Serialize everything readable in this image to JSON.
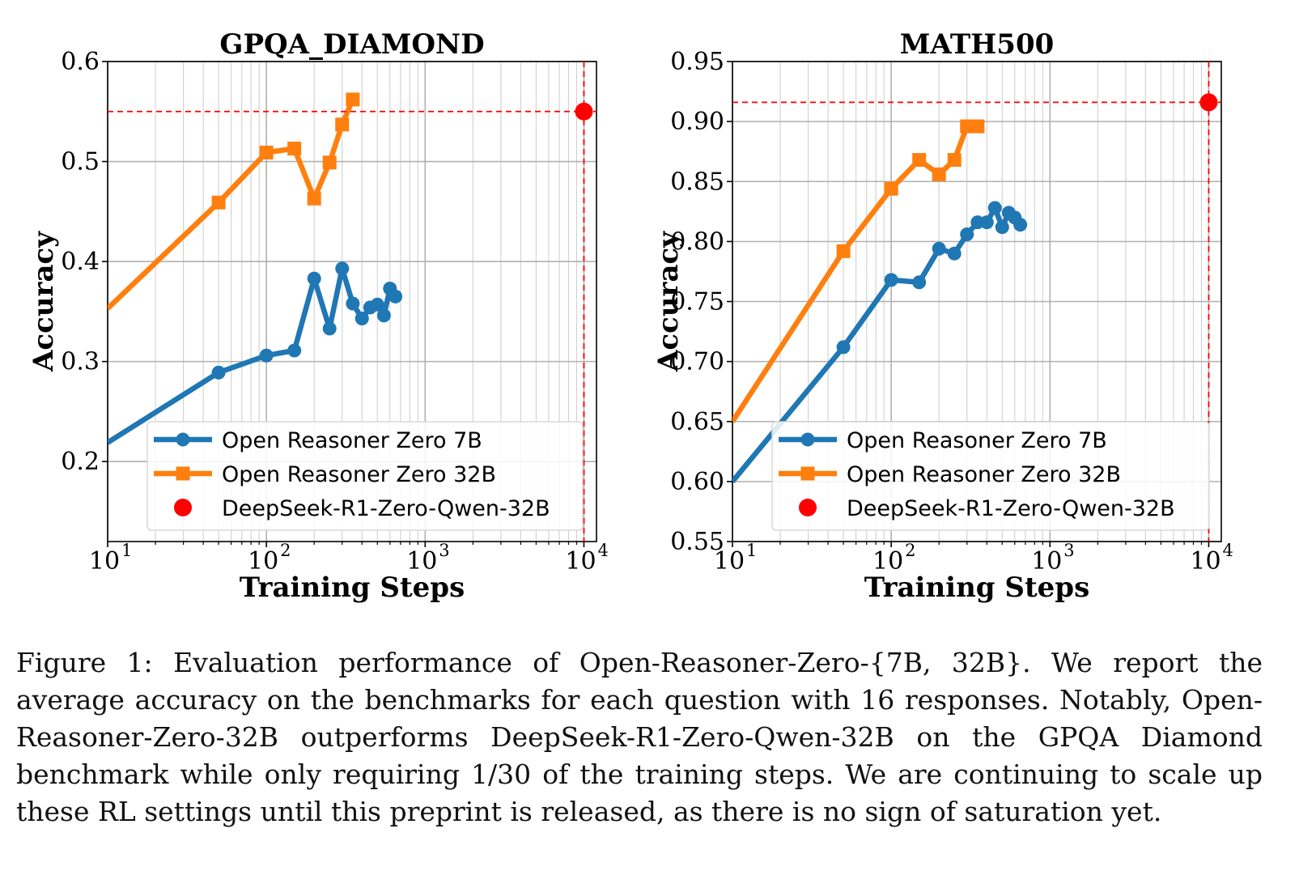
{
  "chart_data": [
    {
      "type": "line",
      "title": "GPQA_DIAMOND",
      "xlabel": "Training Steps",
      "ylabel": "Accuracy",
      "xscale": "log",
      "xlim": [
        10,
        12000
      ],
      "ylim": [
        0.12,
        0.6
      ],
      "grid": true,
      "legend_placement": "lower-right",
      "x_ticks": [
        {
          "base": "10",
          "exp": "1"
        },
        {
          "base": "10",
          "exp": "2"
        },
        {
          "base": "10",
          "exp": "3"
        },
        {
          "base": "10",
          "exp": "4"
        }
      ],
      "y_ticks": [
        0.2,
        0.3,
        0.4,
        0.5,
        0.6
      ],
      "y_tick_labels": [
        "0.2",
        "0.3",
        "0.4",
        "0.5",
        "0.6"
      ],
      "series": [
        {
          "name": "Open Reasoner Zero 7B",
          "color": "#1f77b4",
          "marker": "circle",
          "x": [
            10,
            50,
            100,
            150,
            200,
            250,
            300,
            350,
            400,
            450,
            500,
            550,
            600,
            650
          ],
          "y": [
            0.219,
            0.289,
            0.306,
            0.311,
            0.383,
            0.333,
            0.393,
            0.358,
            0.343,
            0.354,
            0.357,
            0.346,
            0.373,
            0.365
          ],
          "markers_from_index": 1
        },
        {
          "name": "Open Reasoner Zero 32B",
          "color": "#ff7f0e",
          "marker": "square",
          "x": [
            10,
            50,
            100,
            150,
            200,
            250,
            300,
            350
          ],
          "y": [
            0.353,
            0.459,
            0.509,
            0.513,
            0.463,
            0.499,
            0.537,
            0.562
          ],
          "markers_from_index": 1
        },
        {
          "name": "DeepSeek-R1-Zero-Qwen-32B",
          "color": "#ff0000",
          "marker": "circle",
          "x": [
            10000
          ],
          "y": [
            0.55
          ],
          "reference_lines": true
        }
      ]
    },
    {
      "type": "line",
      "title": "MATH500",
      "xlabel": "Training Steps",
      "ylabel": "Accuracy",
      "xscale": "log",
      "xlim": [
        10,
        12000
      ],
      "ylim": [
        0.55,
        0.95
      ],
      "grid": true,
      "legend_placement": "lower-right",
      "x_ticks": [
        {
          "base": "10",
          "exp": "1"
        },
        {
          "base": "10",
          "exp": "2"
        },
        {
          "base": "10",
          "exp": "3"
        },
        {
          "base": "10",
          "exp": "4"
        }
      ],
      "y_ticks": [
        0.55,
        0.6,
        0.65,
        0.7,
        0.75,
        0.8,
        0.85,
        0.9,
        0.95
      ],
      "y_tick_labels": [
        "0.55",
        "0.60",
        "0.65",
        "0.70",
        "0.75",
        "0.80",
        "0.85",
        "0.90",
        "0.95"
      ],
      "series": [
        {
          "name": "Open Reasoner Zero 7B",
          "color": "#1f77b4",
          "marker": "circle",
          "x": [
            10,
            50,
            100,
            150,
            200,
            250,
            300,
            350,
            400,
            450,
            500,
            550,
            600,
            650
          ],
          "y": [
            0.6,
            0.712,
            0.768,
            0.766,
            0.794,
            0.79,
            0.806,
            0.816,
            0.816,
            0.828,
            0.812,
            0.824,
            0.82,
            0.814
          ],
          "markers_from_index": 1
        },
        {
          "name": "Open Reasoner Zero 32B",
          "color": "#ff7f0e",
          "marker": "square",
          "x": [
            10,
            50,
            100,
            150,
            200,
            250,
            300,
            350
          ],
          "y": [
            0.65,
            0.792,
            0.844,
            0.868,
            0.856,
            0.868,
            0.896,
            0.896
          ],
          "markers_from_index": 1
        },
        {
          "name": "DeepSeek-R1-Zero-Qwen-32B",
          "color": "#ff0000",
          "marker": "circle",
          "x": [
            10000
          ],
          "y": [
            0.916
          ],
          "reference_lines": true
        }
      ]
    }
  ],
  "caption": "Figure 1: Evaluation performance of Open-Reasoner-Zero-{7B, 32B}. We report the average accuracy on the benchmarks for each question with 16 responses. Notably, Open-Reasoner-Zero-32B outperforms DeepSeek-R1-Zero-Qwen-32B on the GPQA Diamond benchmark while only requiring 1/30 of the training steps. We are continuing to scale up these RL settings until this preprint is released, as there is no sign of saturation yet."
}
